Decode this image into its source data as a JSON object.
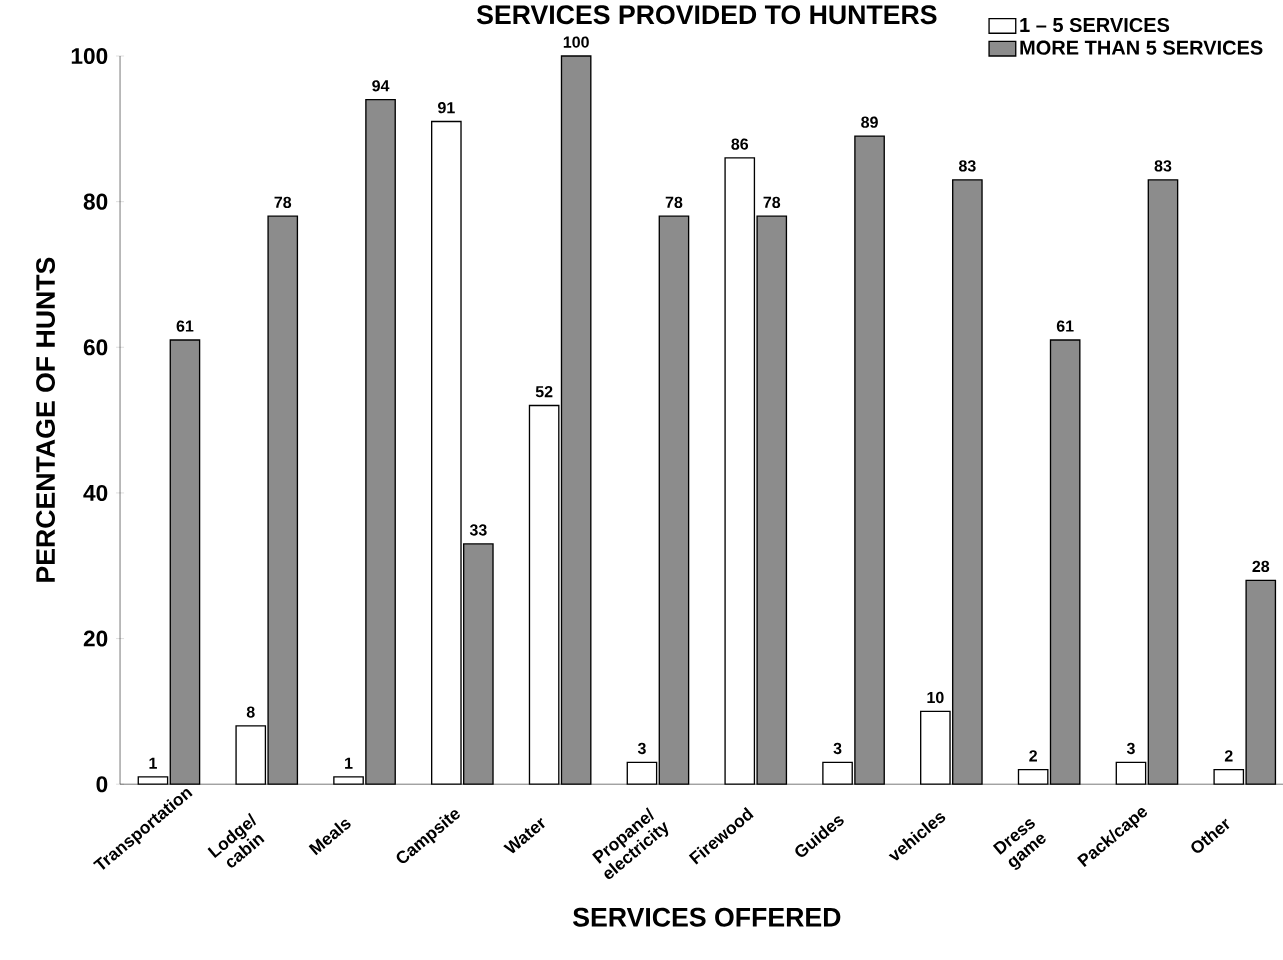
{
  "chart_data": {
    "type": "bar",
    "title": "SERVICES PROVIDED TO HUNTERS",
    "xlabel": "SERVICES OFFERED",
    "ylabel": "PERCENTAGE OF HUNTS",
    "categories": [
      "Transportation",
      "Lodge/ cabin",
      "Meals",
      "Campsite",
      "Water",
      "Propane/ electricity",
      "Firewood",
      "Guides",
      "vehicles",
      "Dress game",
      "Pack/cape",
      "Other"
    ],
    "series": [
      {
        "name": "1 – 5 SERVICES",
        "color": "#ffffff",
        "values": [
          1,
          8,
          1,
          91,
          52,
          3,
          86,
          3,
          10,
          2,
          3,
          2
        ]
      },
      {
        "name": "MORE THAN 5 SERVICES",
        "color": "#8c8c8c",
        "values": [
          61,
          78,
          94,
          33,
          100,
          78,
          78,
          89,
          83,
          61,
          83,
          28
        ]
      }
    ],
    "ylim": [
      0,
      100
    ],
    "yticks": [
      0,
      20,
      40,
      60,
      80,
      100
    ],
    "data_labels": true,
    "legend": "top right",
    "grid": false
  }
}
